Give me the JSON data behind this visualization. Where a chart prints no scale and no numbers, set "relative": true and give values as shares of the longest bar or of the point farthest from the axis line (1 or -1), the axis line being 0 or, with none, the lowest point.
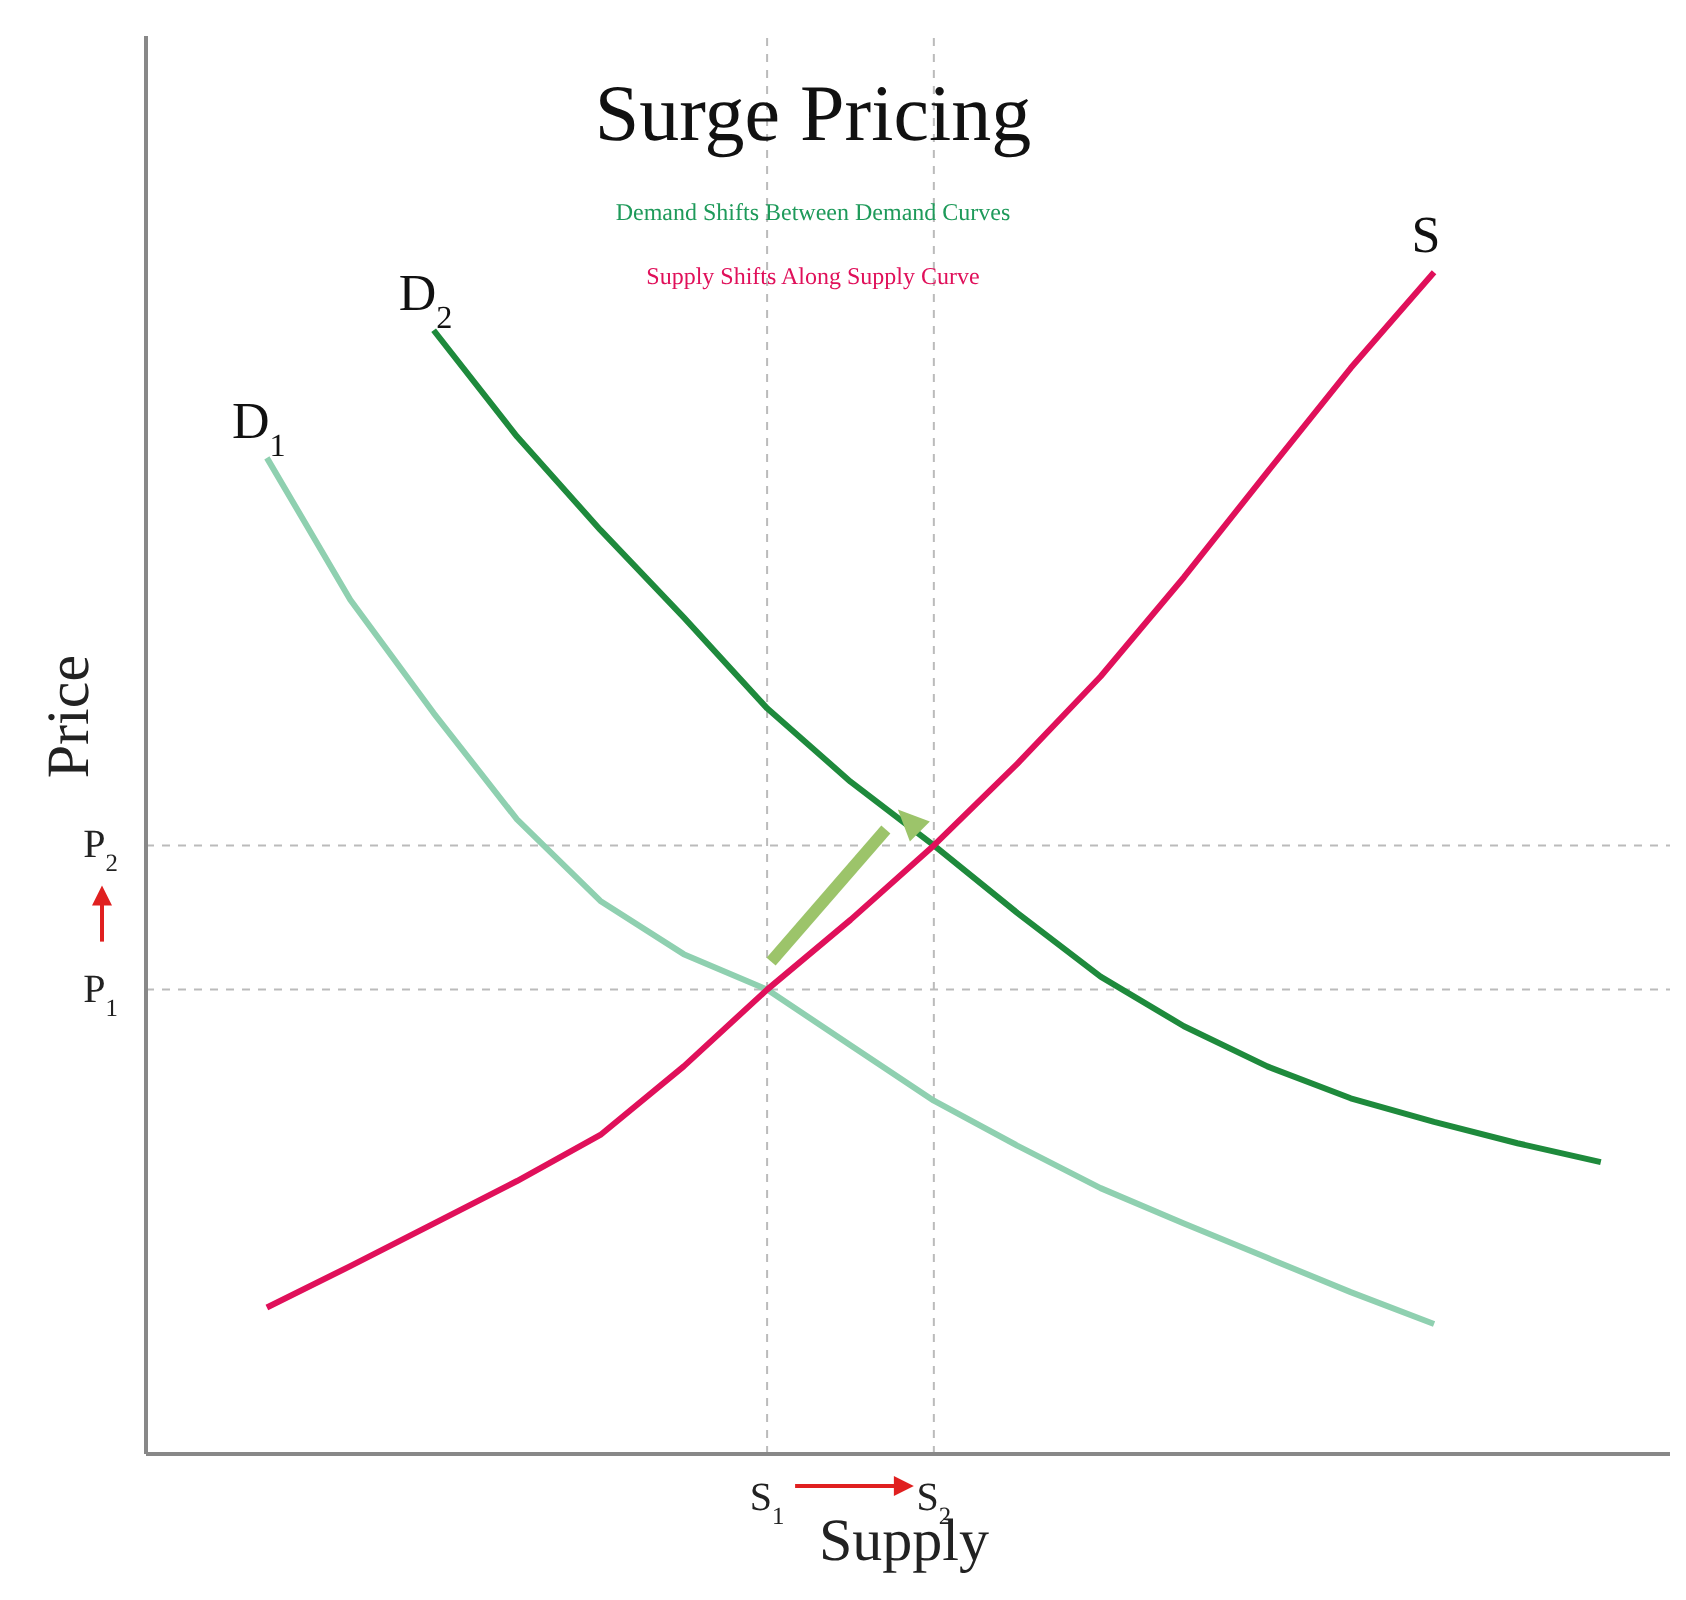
{
  "chart_data": {
    "type": "line",
    "title": "Surge Pricing",
    "subtitle": "Demand Shifts Between Demand Curves",
    "annotations": [
      "Supply Shifts Along Supply Curve"
    ],
    "xlabel": "Supply",
    "ylabel": "Price",
    "relative": true,
    "marker": "none",
    "line_style": "solid",
    "categories": [
      null,
      null,
      null,
      null,
      null,
      null,
      null,
      "S$_{1}$",
      null,
      "S$_{2}$",
      null,
      null,
      null,
      null,
      null,
      null,
      null,
      null
    ],
    "series": [
      {
        "name": "D$_{1}$",
        "color": "#8fd0b0",
        "values": [
          null,
          0.843,
          0.723,
          0.627,
          0.537,
          0.468,
          0.423,
          0.393,
          0.346,
          0.299,
          0.261,
          0.225,
          0.195,
          0.166,
          0.137,
          0.11,
          null,
          null
        ]
      },
      {
        "name": "D$_{2}$",
        "color": "#1e8a3c",
        "values": [
          null,
          null,
          null,
          0.951,
          0.861,
          0.782,
          0.708,
          0.631,
          0.569,
          0.515,
          0.458,
          0.404,
          0.362,
          0.328,
          0.301,
          0.281,
          0.263,
          0.247
        ]
      },
      {
        "name": "S",
        "color": "#e0105a",
        "values": [
          null,
          0.124,
          0.159,
          0.195,
          0.231,
          0.27,
          0.328,
          0.393,
          0.452,
          0.515,
          0.584,
          0.658,
          0.742,
          0.831,
          0.919,
          1,
          null,
          null
        ]
      }
    ],
    "ref_lines": [
      {
        "axis": "y",
        "value": 0.393,
        "label": "P$_{1}$",
        "color": "#bbbbbb",
        "line_style": "dashed"
      },
      {
        "axis": "y",
        "value": 0.515,
        "label": "P$_{2}$",
        "color": "#bbbbbb",
        "line_style": "dashed"
      },
      {
        "axis": "x",
        "value": "S$_{1}$",
        "color": "#bbbbbb",
        "line_style": "dashed"
      },
      {
        "axis": "x",
        "value": "S$_{2}$",
        "color": "#bbbbbb",
        "line_style": "dashed"
      }
    ]
  }
}
